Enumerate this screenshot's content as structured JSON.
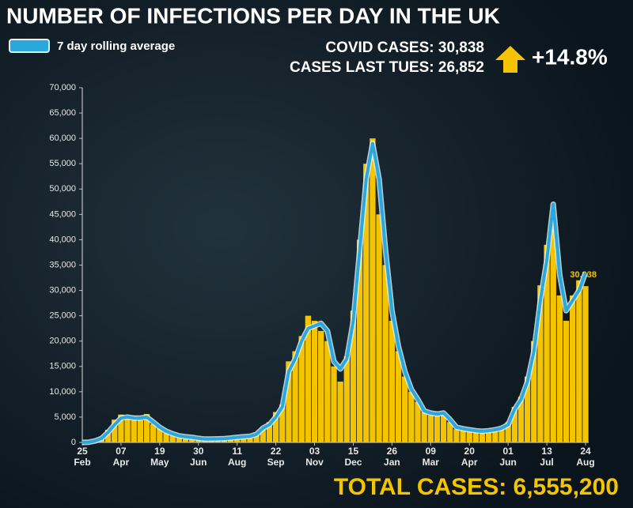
{
  "header": {
    "covid_cases": "COVID CASES: 30,838",
    "cases_last_tues": "CASES LAST TUES: 26,852",
    "change": "+14.8%"
  },
  "footer": {
    "total_cases": "TOTAL CASES: 6,555,200"
  },
  "chart_data": {
    "type": "bar-line",
    "title": "NUMBER OF INFECTIONS PER DAY IN THE UK",
    "categories": [
      "25 Feb",
      null,
      null,
      null,
      null,
      null,
      "07 Apr",
      null,
      null,
      null,
      null,
      null,
      "19 May",
      null,
      null,
      null,
      null,
      null,
      "30 Jun",
      null,
      null,
      null,
      null,
      null,
      "11 Aug",
      null,
      null,
      null,
      null,
      null,
      "22 Sep",
      null,
      null,
      null,
      null,
      null,
      "03 Nov",
      null,
      null,
      null,
      null,
      null,
      "15 Dec",
      null,
      null,
      null,
      null,
      null,
      "26 Jan",
      null,
      null,
      null,
      null,
      null,
      "09 Mar",
      null,
      null,
      null,
      null,
      null,
      "20 Apr",
      null,
      null,
      null,
      null,
      null,
      "01 Jun",
      null,
      null,
      null,
      null,
      null,
      "13 Jul",
      null,
      null,
      null,
      null,
      null,
      "24 Aug"
    ],
    "series": [
      {
        "color": "#f5c400",
        "values": [
          0,
          80,
          400,
          1000,
          2500,
          4500,
          5500,
          4700,
          5200,
          4400,
          5600,
          3600,
          2800,
          2000,
          1500,
          1200,
          1000,
          900,
          700,
          600,
          700,
          650,
          800,
          900,
          1000,
          1200,
          1300,
          1900,
          3000,
          4000,
          6000,
          7500,
          16000,
          18000,
          21000,
          25000,
          24000,
          22000,
          20000,
          15000,
          12000,
          17000,
          26000,
          40000,
          55000,
          60000,
          45000,
          35000,
          24000,
          18000,
          13000,
          10000,
          8000,
          6000,
          5500,
          5300,
          5800,
          4000,
          2600,
          2500,
          2400,
          2100,
          2300,
          2400,
          2700,
          3000,
          4000,
          7000,
          9000,
          13000,
          20000,
          31000,
          39000,
          44000,
          29000,
          24000,
          29000,
          32000,
          30838
        ],
        "value_labels": [
          null,
          null,
          null,
          null,
          null,
          null,
          null,
          null,
          null,
          null,
          null,
          null,
          null,
          null,
          null,
          null,
          null,
          null,
          null,
          null,
          null,
          null,
          null,
          null,
          null,
          null,
          null,
          null,
          null,
          null,
          null,
          null,
          null,
          null,
          null,
          null,
          null,
          null,
          null,
          null,
          null,
          null,
          null,
          null,
          null,
          null,
          null,
          null,
          null,
          null,
          null,
          null,
          null,
          null,
          null,
          null,
          null,
          null,
          null,
          null,
          null,
          null,
          null,
          null,
          null,
          null,
          null,
          null,
          null,
          null,
          null,
          null,
          null,
          null,
          null,
          null,
          null,
          null,
          "30,838"
        ]
      },
      {
        "name": "7 day rolling average",
        "color": "#2aa8dc",
        "values": [
          0,
          50,
          300,
          800,
          2000,
          3500,
          4800,
          5000,
          4800,
          4800,
          5000,
          4000,
          3000,
          2200,
          1700,
          1300,
          1100,
          1000,
          800,
          650,
          650,
          700,
          750,
          850,
          1000,
          1100,
          1200,
          1600,
          2800,
          3500,
          5000,
          7000,
          14000,
          16500,
          20000,
          22500,
          23000,
          23500,
          22000,
          16000,
          14500,
          16500,
          24000,
          38000,
          52000,
          59000,
          52000,
          38000,
          26000,
          19000,
          14000,
          10500,
          8500,
          6200,
          5800,
          5600,
          5800,
          4500,
          3000,
          2700,
          2500,
          2300,
          2200,
          2300,
          2500,
          2800,
          3500,
          6500,
          8500,
          12000,
          18000,
          28000,
          36000,
          47000,
          33000,
          26000,
          28000,
          30000,
          33500
        ]
      }
    ],
    "ylim": [
      0,
      70000
    ],
    "yticks": [
      0,
      {
        "value": 5000,
        "label": "5,000"
      },
      {
        "value": 10000,
        "label": "10,000"
      },
      {
        "value": 15000,
        "label": "15,000"
      },
      {
        "value": 20000,
        "label": "20,000"
      },
      {
        "value": 25000,
        "label": "25,000"
      },
      {
        "value": 30000,
        "label": "30,000"
      },
      {
        "value": 35000,
        "label": "35,000"
      },
      {
        "value": 40000,
        "label": "40,000"
      },
      {
        "value": 45000,
        "label": "45,000"
      },
      {
        "value": 50000,
        "label": "50,000"
      },
      {
        "value": 55000,
        "label": "55,000"
      },
      {
        "value": 60000,
        "label": "60,000"
      },
      {
        "value": 65000,
        "label": "65,000"
      },
      {
        "value": 70000,
        "label": "70,000"
      }
    ]
  }
}
